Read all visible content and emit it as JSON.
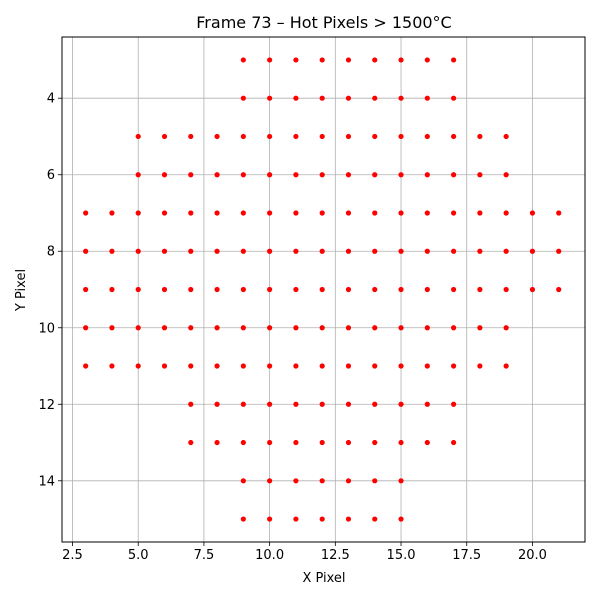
{
  "chart_data": {
    "type": "scatter",
    "title": "Frame 73 – Hot Pixels > 1500°C",
    "xlabel": "X Pixel",
    "ylabel": "Y Pixel",
    "xlim": [
      2.1,
      22.0
    ],
    "ylim": [
      15.6,
      2.4
    ],
    "y_inverted": true,
    "grid": true,
    "marker_color": "#ff0000",
    "x_ticks": [
      2.5,
      5.0,
      7.5,
      10.0,
      12.5,
      15.0,
      17.5,
      20.0
    ],
    "x_tick_labels": [
      "2.5",
      "5.0",
      "7.5",
      "10.0",
      "12.5",
      "15.0",
      "17.5",
      "20.0"
    ],
    "y_ticks": [
      4,
      6,
      8,
      10,
      12,
      14
    ],
    "y_tick_labels": [
      "4",
      "6",
      "8",
      "10",
      "12",
      "14"
    ],
    "rows": [
      {
        "y": 3,
        "x_from": 9,
        "x_to": 17
      },
      {
        "y": 4,
        "x_from": 9,
        "x_to": 17
      },
      {
        "y": 5,
        "x_from": 5,
        "x_to": 19
      },
      {
        "y": 6,
        "x_from": 5,
        "x_to": 19
      },
      {
        "y": 7,
        "x_from": 3,
        "x_to": 21
      },
      {
        "y": 8,
        "x_from": 3,
        "x_to": 21
      },
      {
        "y": 9,
        "x_from": 3,
        "x_to": 21
      },
      {
        "y": 10,
        "x_from": 3,
        "x_to": 19
      },
      {
        "y": 11,
        "x_from": 3,
        "x_to": 19
      },
      {
        "y": 12,
        "x_from": 7,
        "x_to": 17
      },
      {
        "y": 13,
        "x_from": 7,
        "x_to": 17
      },
      {
        "y": 14,
        "x_from": 9,
        "x_to": 15
      },
      {
        "y": 15,
        "x_from": 9,
        "x_to": 15
      }
    ]
  }
}
